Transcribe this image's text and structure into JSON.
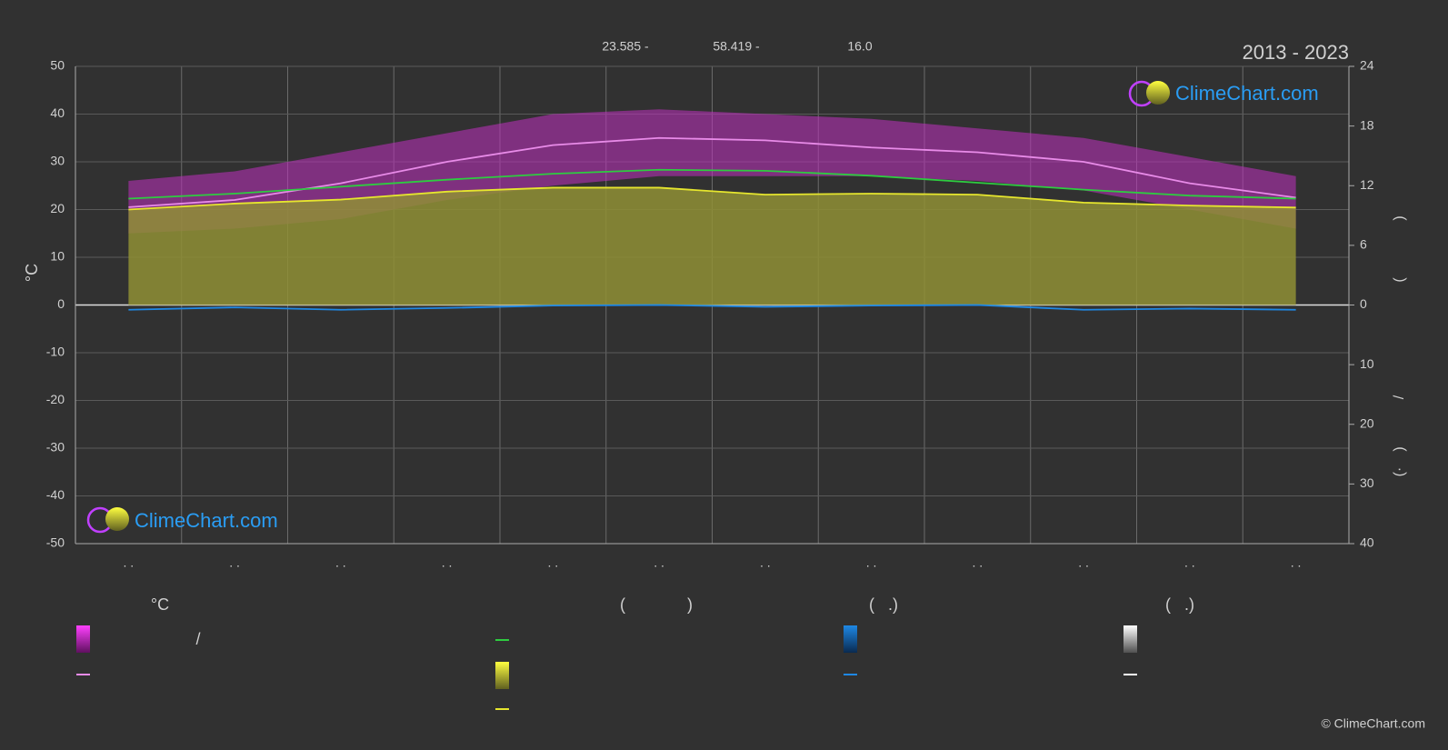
{
  "chart_data": {
    "type": "line",
    "title": "2013 - 2023",
    "annotations": [
      "23.585 -",
      "58.419 -",
      "16.0"
    ],
    "watermark": "ClimeChart.com",
    "copyright": "© ClimeChart.com",
    "y_label": "°C",
    "right_axis_fragments": [
      ")",
      "(",
      "/",
      ")",
      "(·"
    ],
    "categories": [
      ". .",
      ". .",
      ". .",
      ". .",
      ". .",
      ". .",
      ". .",
      ". .",
      ". .",
      ". .",
      ". .",
      ". ."
    ],
    "ylim": [
      -50,
      50
    ],
    "yticks": [
      50,
      40,
      30,
      20,
      10,
      0,
      -10,
      -20,
      -30,
      -40,
      -50
    ],
    "y2lim": [
      0,
      24
    ],
    "y2ticks": [
      24,
      18,
      12,
      6,
      0
    ],
    "y3lim": [
      0,
      40
    ],
    "y3ticks": [
      10,
      20,
      30,
      40
    ],
    "grid": true,
    "band": {
      "color": "#c030c0",
      "upper": [
        26,
        28,
        32,
        36,
        40,
        41,
        40,
        39,
        37,
        35,
        31,
        27
      ],
      "lower": [
        15,
        16,
        18,
        22,
        25,
        27,
        27,
        27,
        26,
        24,
        20,
        16
      ]
    },
    "series": [
      {
        "color": "#e88be8",
        "axis": "y",
        "values": [
          20.5,
          22,
          25.5,
          30,
          33.5,
          35,
          34.5,
          33,
          32,
          30,
          25.5,
          22.5
        ]
      },
      {
        "color": "#2ecc40",
        "axis": "y2",
        "values": [
          10.7,
          11.2,
          11.9,
          12.6,
          13.2,
          13.6,
          13.5,
          13.0,
          12.3,
          11.6,
          11.0,
          10.7
        ]
      },
      {
        "color": "#e6e62e",
        "axis": "y2",
        "fill": "#8f8f35",
        "values": [
          9.6,
          10.2,
          10.6,
          11.4,
          11.8,
          11.8,
          11.1,
          11.2,
          11.1,
          10.3,
          10.0,
          9.8
        ]
      },
      {
        "color": "#1e88e5",
        "axis": "y3",
        "values": [
          0.8,
          0.4,
          0.8,
          0.5,
          0.1,
          0.0,
          0.3,
          0.1,
          0.0,
          0.8,
          0.6,
          0.8
        ]
      }
    ],
    "legend": {
      "headers": [
        "°C",
        "(",
        ")",
        "(   .)",
        "(   .)"
      ],
      "texts": [
        "/"
      ]
    }
  }
}
